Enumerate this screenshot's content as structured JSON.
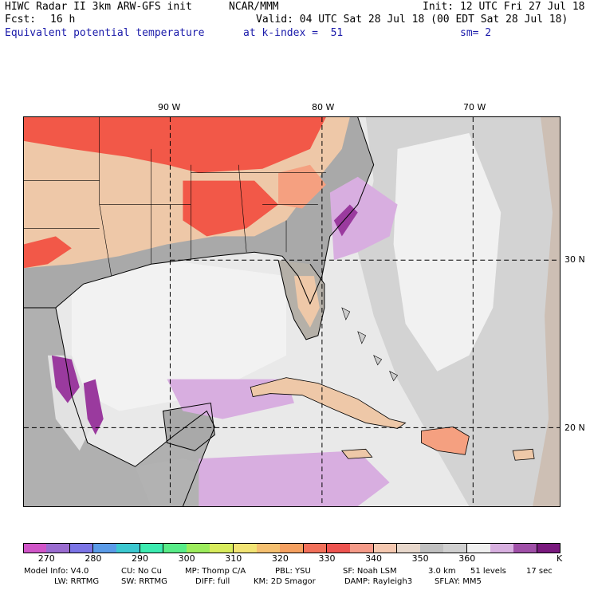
{
  "header": {
    "title": "HIWC Radar II 3km ARW-GFS init",
    "org": "NCAR/MMM",
    "init": "Init: 12 UTC Fri 27 Jul 18",
    "fcst_label": "Fcst:",
    "fcst_value": "16 h",
    "valid": "Valid: 04 UTC Sat 28 Jul 18 (00 EDT Sat 28 Jul 18)",
    "field": "Equivalent potential temperature",
    "level": "at k-index =  51",
    "smooth": "sm= 2"
  },
  "map": {
    "lon_labels": [
      "90 W",
      "80 W",
      "70 W"
    ],
    "lat_labels": [
      "30 N",
      "20 N"
    ],
    "colors": {
      "land_gray": "#a9a9a9",
      "ocean_light": "#e9e9e9",
      "ocean_mid": "#d3d3d3",
      "warm_tan": "#eec8a8",
      "warm_salmon": "#f5a080",
      "hot_red": "#f25848",
      "purple_light": "#d8aee0",
      "purple_dark": "#9a3a9e"
    }
  },
  "colorbar": {
    "colors": [
      "#d055c8",
      "#9a6cd0",
      "#7b74e6",
      "#5a9be8",
      "#3cc8d0",
      "#3cebb0",
      "#58ec88",
      "#9cec5c",
      "#d8ec5c",
      "#f2e474",
      "#f5c070",
      "#f5a060",
      "#f2705a",
      "#ee5450",
      "#f59a88",
      "#f5c8b0",
      "#e8d8cc",
      "#c0c0c0",
      "#d0d0d0",
      "#f0f0f0",
      "#d8b0e0",
      "#a050a8",
      "#7a1a7e"
    ],
    "labels": [
      "270",
      "280",
      "290",
      "300",
      "310",
      "320",
      "330",
      "340",
      "350",
      "360"
    ],
    "unit": "K"
  },
  "footer": {
    "line1": [
      "Model Info: V4.0",
      "CU: No Cu",
      "MP: Thomp C/A",
      "PBL: YSU",
      "SF: Noah LSM",
      "3.0 km",
      "51 levels",
      "17 sec"
    ],
    "line2": [
      "LW: RRTMG",
      "SW: RRTMG",
      "DIFF: full",
      "KM: 2D Smagor",
      "DAMP: Rayleigh3",
      "SFLAY: MM5"
    ]
  }
}
